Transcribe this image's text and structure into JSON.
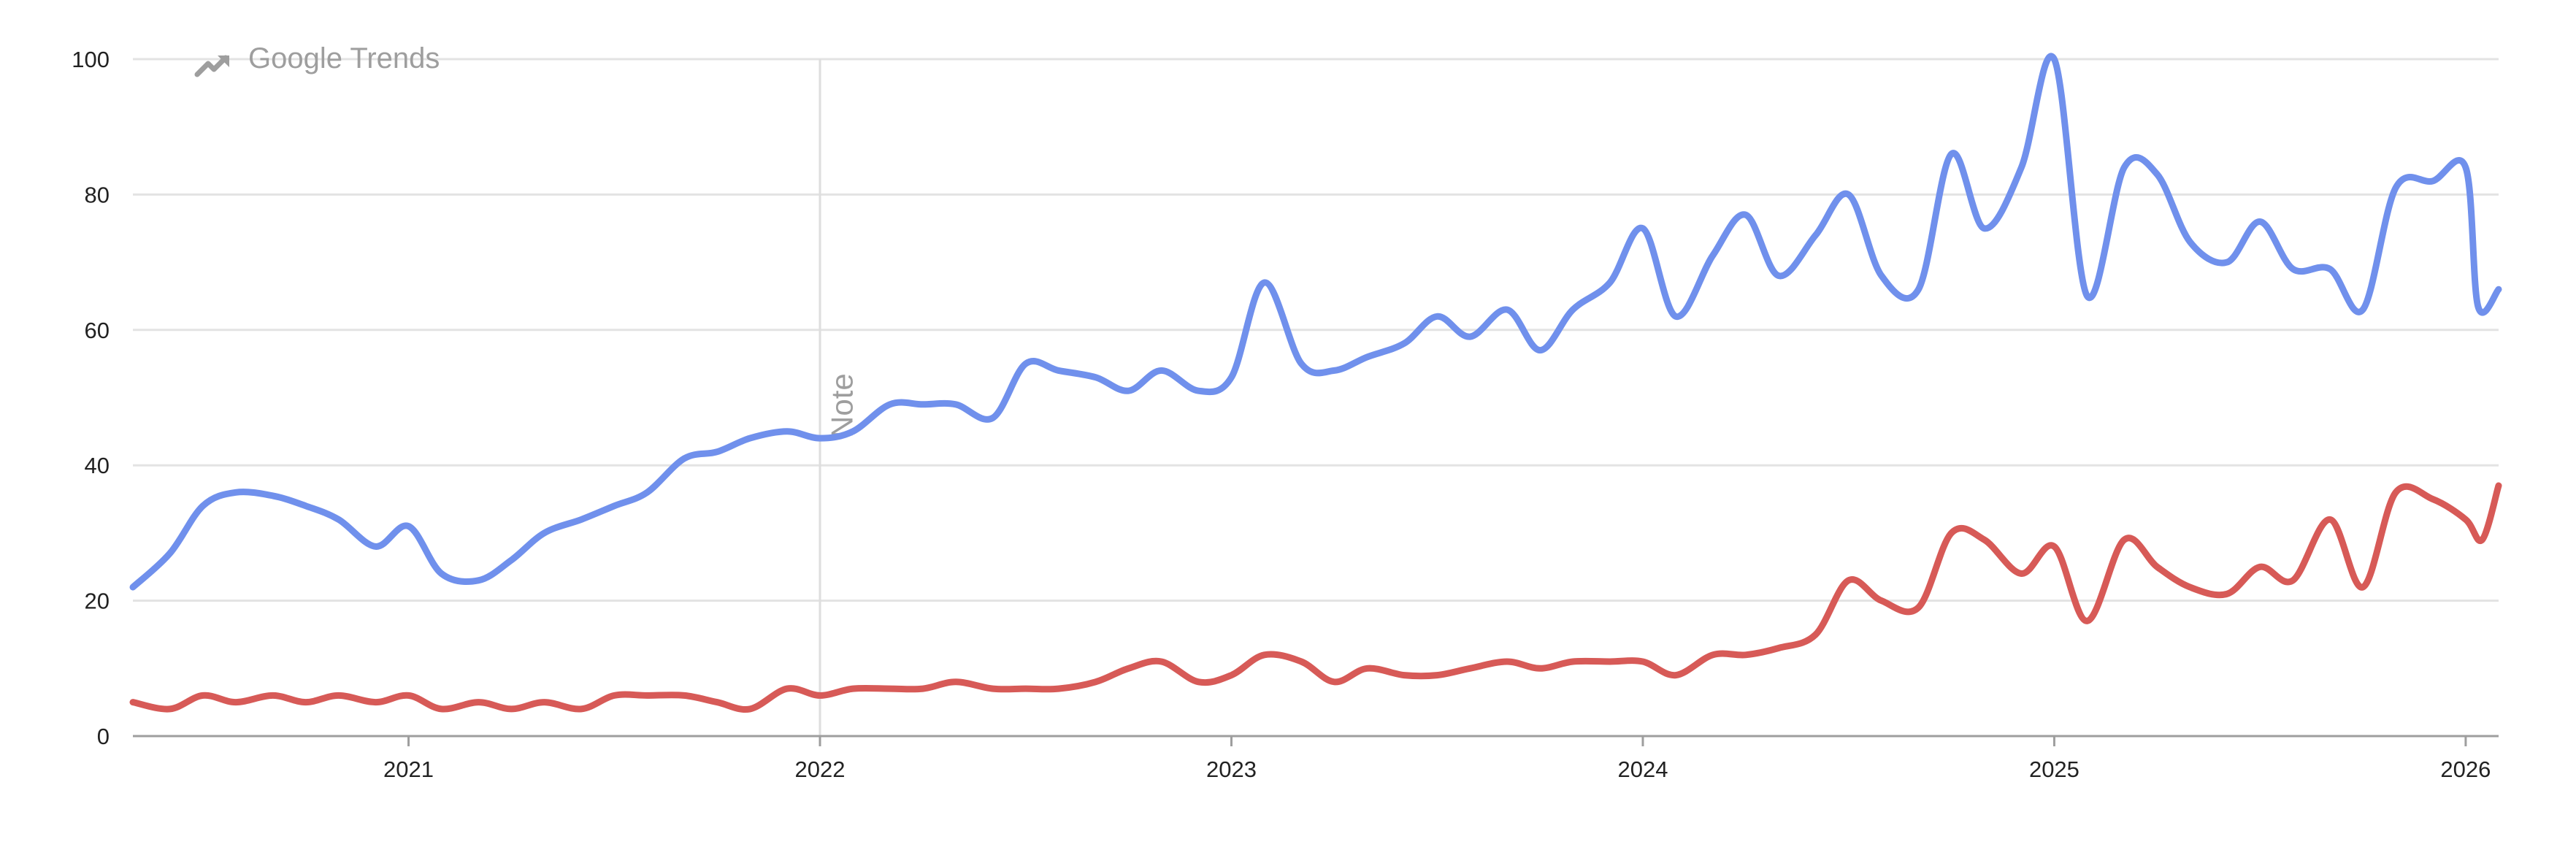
{
  "watermark": {
    "label": "Google Trends",
    "icon": "trending-up-icon",
    "color": "#9e9e9e"
  },
  "note": {
    "label": "Note"
  },
  "chart_data": {
    "type": "line",
    "title": "",
    "xlabel": "",
    "ylabel": "",
    "ylim": [
      0,
      100
    ],
    "xlim": [
      2020.33,
      2026.08
    ],
    "y_ticks": [
      0,
      20,
      40,
      60,
      80,
      100
    ],
    "x_ticks": [
      {
        "value": 2021,
        "label": "2021"
      },
      {
        "value": 2022,
        "label": "2022"
      },
      {
        "value": 2023,
        "label": "2023"
      },
      {
        "value": 2024,
        "label": "2024"
      },
      {
        "value": 2025,
        "label": "2025"
      },
      {
        "value": 2026,
        "label": "2026"
      }
    ],
    "note_marker_x": 2022,
    "grid": true,
    "legend": "none",
    "series": [
      {
        "color": "#7090ec",
        "points": [
          [
            2020.33,
            22
          ],
          [
            2020.42,
            27
          ],
          [
            2020.5,
            34
          ],
          [
            2020.58,
            36
          ],
          [
            2020.67,
            35.5
          ],
          [
            2020.75,
            34
          ],
          [
            2020.83,
            32
          ],
          [
            2020.92,
            28
          ],
          [
            2021.0,
            31
          ],
          [
            2021.08,
            24
          ],
          [
            2021.17,
            23
          ],
          [
            2021.25,
            26
          ],
          [
            2021.33,
            30
          ],
          [
            2021.42,
            32
          ],
          [
            2021.5,
            34
          ],
          [
            2021.58,
            36
          ],
          [
            2021.67,
            41
          ],
          [
            2021.75,
            42
          ],
          [
            2021.83,
            44
          ],
          [
            2021.92,
            45
          ],
          [
            2022.0,
            44
          ],
          [
            2022.08,
            45
          ],
          [
            2022.17,
            49
          ],
          [
            2022.25,
            49
          ],
          [
            2022.33,
            49
          ],
          [
            2022.42,
            47
          ],
          [
            2022.5,
            55
          ],
          [
            2022.58,
            54
          ],
          [
            2022.67,
            53
          ],
          [
            2022.75,
            51
          ],
          [
            2022.83,
            54
          ],
          [
            2022.92,
            51
          ],
          [
            2023.0,
            53
          ],
          [
            2023.08,
            67
          ],
          [
            2023.17,
            55
          ],
          [
            2023.25,
            54
          ],
          [
            2023.33,
            56
          ],
          [
            2023.42,
            58
          ],
          [
            2023.5,
            62
          ],
          [
            2023.58,
            59
          ],
          [
            2023.67,
            63
          ],
          [
            2023.75,
            57
          ],
          [
            2023.83,
            63
          ],
          [
            2023.92,
            67
          ],
          [
            2024.0,
            75
          ],
          [
            2024.08,
            62
          ],
          [
            2024.17,
            71
          ],
          [
            2024.25,
            77
          ],
          [
            2024.33,
            68
          ],
          [
            2024.42,
            74
          ],
          [
            2024.5,
            80
          ],
          [
            2024.58,
            68
          ],
          [
            2024.67,
            66
          ],
          [
            2024.75,
            86
          ],
          [
            2024.83,
            75
          ],
          [
            2024.92,
            84
          ],
          [
            2025.0,
            100
          ],
          [
            2025.08,
            65
          ],
          [
            2025.17,
            84
          ],
          [
            2025.25,
            83
          ],
          [
            2025.33,
            73
          ],
          [
            2025.42,
            70
          ],
          [
            2025.5,
            76
          ],
          [
            2025.58,
            69
          ],
          [
            2025.67,
            69
          ],
          [
            2025.75,
            63
          ],
          [
            2025.83,
            81
          ],
          [
            2025.92,
            82
          ],
          [
            2026.0,
            84
          ],
          [
            2026.03,
            63.5
          ],
          [
            2026.08,
            66
          ]
        ]
      },
      {
        "color": "#d75a57",
        "points": [
          [
            2020.33,
            5
          ],
          [
            2020.42,
            4
          ],
          [
            2020.5,
            6
          ],
          [
            2020.58,
            5
          ],
          [
            2020.67,
            6
          ],
          [
            2020.75,
            5
          ],
          [
            2020.83,
            6
          ],
          [
            2020.92,
            5
          ],
          [
            2021.0,
            6
          ],
          [
            2021.08,
            4
          ],
          [
            2021.17,
            5
          ],
          [
            2021.25,
            4
          ],
          [
            2021.33,
            5
          ],
          [
            2021.42,
            4
          ],
          [
            2021.5,
            6
          ],
          [
            2021.58,
            6
          ],
          [
            2021.67,
            6
          ],
          [
            2021.75,
            5
          ],
          [
            2021.83,
            4
          ],
          [
            2021.92,
            7
          ],
          [
            2022.0,
            6
          ],
          [
            2022.08,
            7
          ],
          [
            2022.17,
            7
          ],
          [
            2022.25,
            7
          ],
          [
            2022.33,
            8
          ],
          [
            2022.42,
            7
          ],
          [
            2022.5,
            7
          ],
          [
            2022.58,
            7
          ],
          [
            2022.67,
            8
          ],
          [
            2022.75,
            10
          ],
          [
            2022.83,
            11
          ],
          [
            2022.92,
            8
          ],
          [
            2023.0,
            9
          ],
          [
            2023.08,
            12
          ],
          [
            2023.17,
            11
          ],
          [
            2023.25,
            8
          ],
          [
            2023.33,
            10
          ],
          [
            2023.42,
            9
          ],
          [
            2023.5,
            9
          ],
          [
            2023.58,
            10
          ],
          [
            2023.67,
            11
          ],
          [
            2023.75,
            10
          ],
          [
            2023.83,
            11
          ],
          [
            2023.92,
            11
          ],
          [
            2024.0,
            11
          ],
          [
            2024.08,
            9
          ],
          [
            2024.17,
            12
          ],
          [
            2024.25,
            12
          ],
          [
            2024.33,
            13
          ],
          [
            2024.42,
            15
          ],
          [
            2024.5,
            23
          ],
          [
            2024.58,
            20
          ],
          [
            2024.67,
            19
          ],
          [
            2024.75,
            30
          ],
          [
            2024.83,
            29
          ],
          [
            2024.92,
            24
          ],
          [
            2025.0,
            28
          ],
          [
            2025.08,
            17
          ],
          [
            2025.17,
            29
          ],
          [
            2025.25,
            25
          ],
          [
            2025.33,
            22
          ],
          [
            2025.42,
            21
          ],
          [
            2025.5,
            25
          ],
          [
            2025.58,
            23
          ],
          [
            2025.67,
            32
          ],
          [
            2025.75,
            22
          ],
          [
            2025.83,
            36
          ],
          [
            2025.92,
            35
          ],
          [
            2026.0,
            32
          ],
          [
            2026.04,
            29
          ],
          [
            2026.08,
            37
          ]
        ]
      }
    ]
  }
}
